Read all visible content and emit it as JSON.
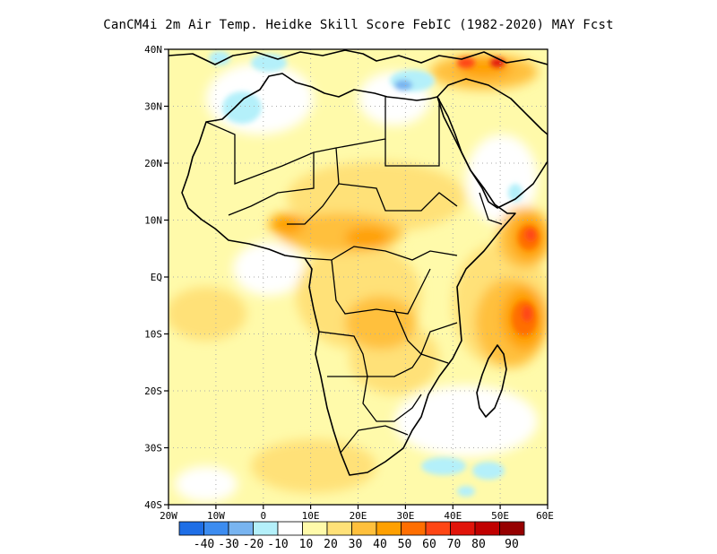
{
  "title": "CanCM4i  2m Air Temp. Heidke Skill Score FebIC (1982-2020) MAY Fcst",
  "lat_labels": [
    "40N",
    "30N",
    "20N",
    "10N",
    "EQ",
    "10S",
    "20S",
    "30S",
    "40S"
  ],
  "lon_labels": [
    "20W",
    "10W",
    "0",
    "10E",
    "20E",
    "30E",
    "40E",
    "50E",
    "60E"
  ],
  "colorbar": {
    "colors": [
      "#1e6ee6",
      "#3c8cf0",
      "#78b4f0",
      "#b4f0fa",
      "#ffffff",
      "#fffaaa",
      "#ffe178",
      "#ffc03c",
      "#ffa000",
      "#ff6e00",
      "#ff4614",
      "#e1140a",
      "#c00000",
      "#960000"
    ],
    "labels": [
      "-40",
      "-30",
      "-20",
      "-10",
      "10",
      "20",
      "30",
      "40",
      "50",
      "60",
      "70",
      "80",
      "90"
    ]
  }
}
